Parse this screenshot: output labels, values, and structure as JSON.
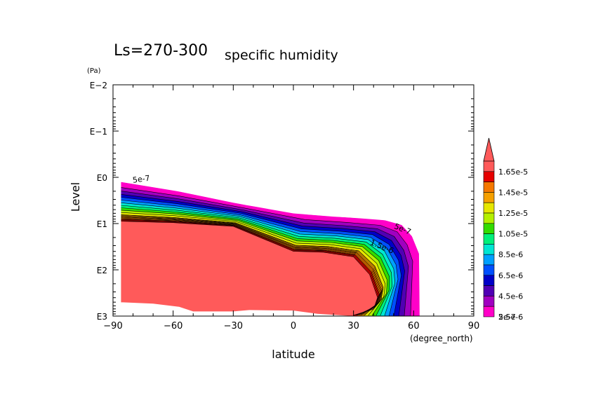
{
  "chart_data": {
    "type": "heatmap",
    "title_main": "Ls=270-300",
    "title_sub": "specific humidity",
    "xlabel": "latitude",
    "x_unit": "(degree_north)",
    "ylabel": "Level",
    "y_unit": "(Pa)",
    "x_ticks": [
      "−90",
      "−60",
      "−30",
      "0",
      "30",
      "60",
      "90"
    ],
    "y_ticks": [
      "E−2",
      "E−1",
      "E0",
      "E1",
      "E2",
      "E3"
    ],
    "xlim": [
      -90,
      90
    ],
    "ylim_log10_pa": [
      -2,
      3
    ],
    "y_scale": "log, pressure increasing downward",
    "colorbar_labels": [
      "1.65e-5",
      "1.45e-5",
      "1.25e-5",
      "1.05e-5",
      "8.5e-6",
      "6.5e-6",
      "4.5e-6",
      "2.5e-6",
      "5e-7"
    ],
    "colorbar_colors": [
      "#ff5a5a",
      "#e60000",
      "#f57800",
      "#f5a000",
      "#e6e600",
      "#b4f000",
      "#32dc00",
      "#00f07a",
      "#00e6d2",
      "#00a0ff",
      "#0050ff",
      "#0000c8",
      "#5000b4",
      "#a000c0",
      "#ff00c8"
    ],
    "contour_labels": [
      "5e-7",
      "5e-7",
      "1.5e-6"
    ],
    "boundaries": {
      "outer_5e-7_top": [
        [
          -86,
          0.1
        ],
        [
          -60,
          0.28
        ],
        [
          -30,
          0.55
        ],
        [
          0,
          0.78
        ],
        [
          20,
          0.85
        ],
        [
          40,
          0.9
        ],
        [
          50,
          0.95
        ],
        [
          56,
          1.07
        ],
        [
          60,
          1.33
        ],
        [
          63,
          1.69
        ],
        [
          63,
          3
        ]
      ],
      "saturated_top": [
        [
          -86,
          0.95
        ],
        [
          -60,
          0.98
        ],
        [
          -30,
          1.06
        ],
        [
          0,
          1.6
        ],
        [
          15,
          1.62
        ],
        [
          30,
          1.72
        ],
        [
          38,
          2.1
        ],
        [
          42,
          2.6
        ],
        [
          40,
          2.85
        ],
        [
          30,
          2.98
        ]
      ],
      "mask_bottom": [
        [
          -86,
          2.7
        ],
        [
          -70,
          2.73
        ],
        [
          -57,
          2.8
        ],
        [
          -50,
          2.9
        ],
        [
          -30,
          2.9
        ],
        [
          -22,
          2.87
        ],
        [
          0,
          2.88
        ],
        [
          12,
          2.95
        ],
        [
          30,
          3
        ]
      ]
    }
  },
  "colors": {
    "saturated": "#ff5a5a",
    "lowest": "#ff00c8",
    "mask": "#ffffff",
    "frame": "#000000"
  }
}
